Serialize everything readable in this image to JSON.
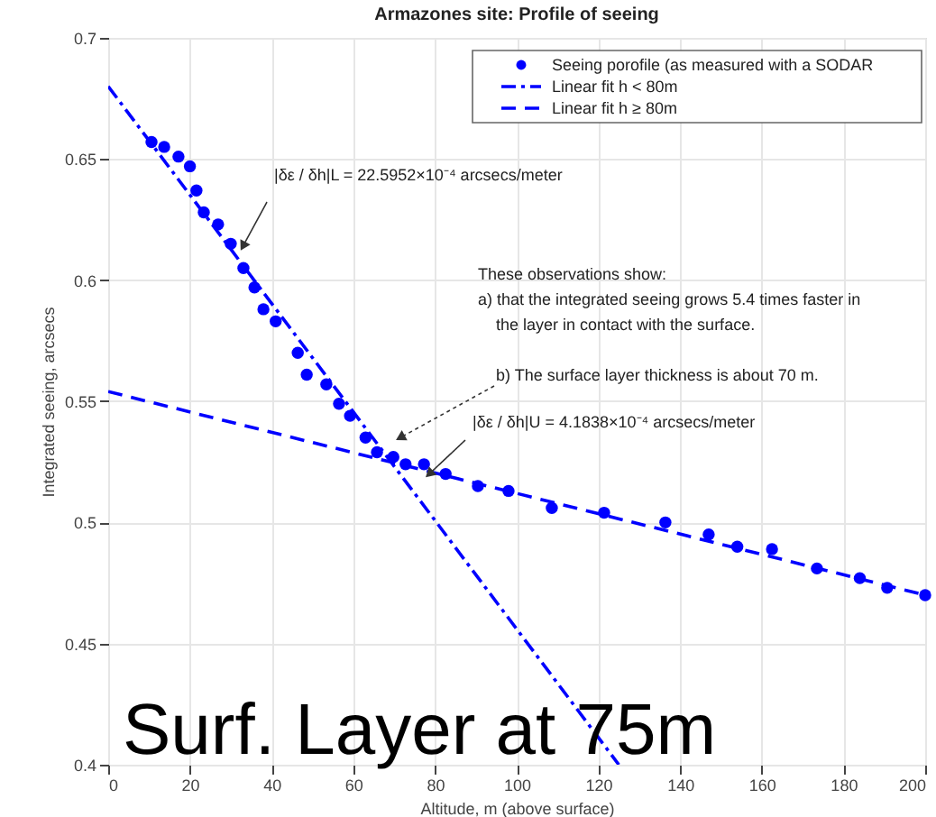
{
  "chart_data": {
    "type": "scatter",
    "title": "Armazones site: Profile of seeing",
    "xlabel": "Altitude, m (above surface)",
    "ylabel": "Integrated seeing, arcsecs",
    "xlim": [
      0,
      200
    ],
    "xticks": [
      0,
      20,
      40,
      60,
      80,
      100,
      120,
      140,
      160,
      180,
      200
    ],
    "ylim": [
      0.4,
      0.7
    ],
    "yticks": [
      0.4,
      0.45,
      0.5,
      0.55,
      0.6,
      0.65,
      0.7
    ],
    "grid": true,
    "legend": "top right",
    "series": [
      {
        "name": "Seeing porofile (as measured with a SODAR",
        "marker": "circle",
        "color": "#0000ff",
        "x": [
          10.6,
          13.7,
          17.2,
          20.0,
          21.6,
          23.4,
          26.9,
          30.0,
          33.1,
          35.8,
          38.0,
          41.0,
          46.4,
          48.6,
          53.4,
          56.5,
          59.2,
          63.0,
          65.8,
          69.8,
          72.8,
          77.3,
          82.6,
          90.5,
          98.0,
          108.6,
          121.4,
          136.4,
          147.0,
          154.0,
          162.5,
          173.5,
          184.0,
          190.7,
          200.0
        ],
        "values": [
          0.657,
          0.655,
          0.651,
          0.647,
          0.637,
          0.628,
          0.623,
          0.615,
          0.605,
          0.597,
          0.588,
          0.583,
          0.57,
          0.561,
          0.557,
          0.549,
          0.544,
          0.535,
          0.529,
          0.527,
          0.524,
          0.524,
          0.52,
          0.515,
          0.513,
          0.506,
          0.504,
          0.5,
          0.495,
          0.49,
          0.489,
          0.481,
          0.477,
          0.473,
          0.47
        ]
      },
      {
        "name": "Linear fit h < 80m",
        "type": "line",
        "line_style": "dashdot",
        "color": "#0000ff",
        "x": [
          0,
          125
        ],
        "values": [
          0.68,
          0.4
        ]
      },
      {
        "name": "Linear fit h ≥ 80m",
        "type": "line",
        "line_style": "dashed",
        "color": "#0000ff",
        "x": [
          0,
          200
        ],
        "values": [
          0.554,
          0.47
        ]
      }
    ],
    "annotations": [
      {
        "text": "|δε / δh|L = 22.5952×10⁻⁴ arcsecs/meter",
        "x": 33,
        "y": 0.614
      },
      {
        "text": "|δε / δh|U = 4.1838×10⁻⁴ arcsecs/meter",
        "x": 78.6,
        "y": 0.52
      },
      "These observations show:",
      "a)  that the integrated seeing grows 5.4 times faster in",
      "the layer in contact with the surface.",
      {
        "text": "b) The surface layer thickness is about 70 m.",
        "x": 71.5,
        "y": 0.535
      },
      "Surf. Layer at 75m"
    ]
  }
}
